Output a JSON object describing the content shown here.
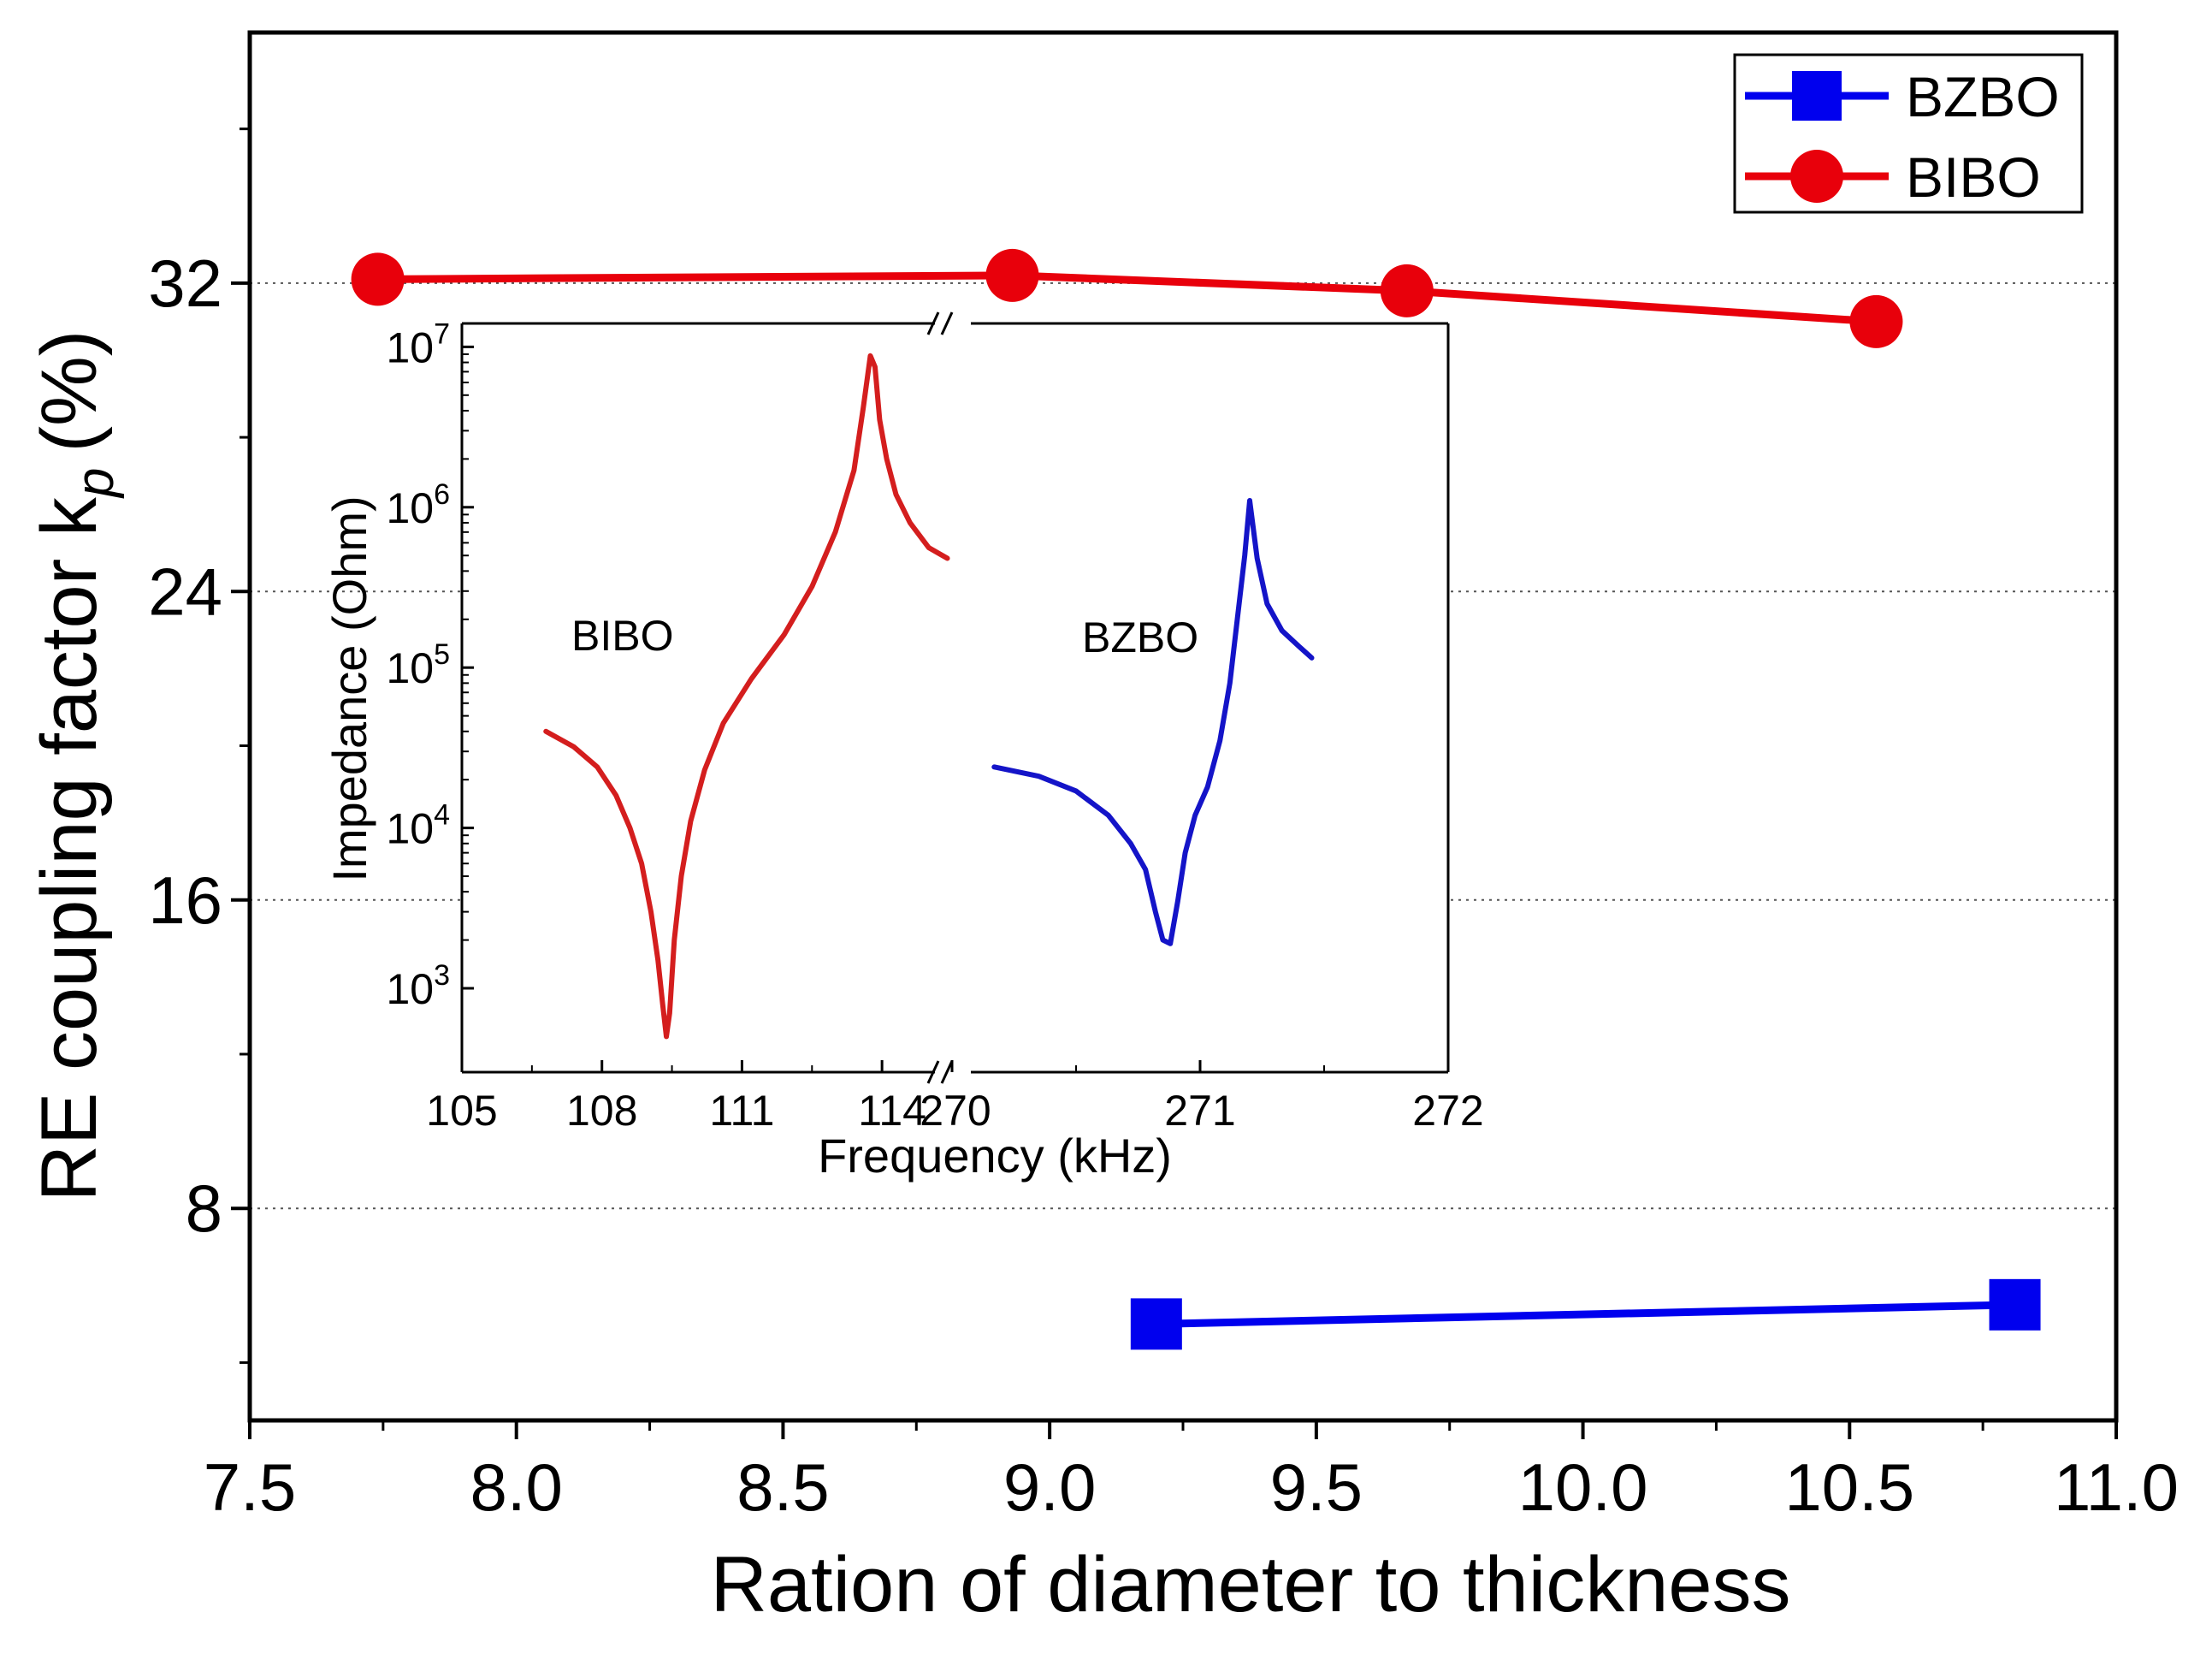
{
  "chart_data": [
    {
      "type": "line",
      "role": "main",
      "xlabel": "Ration of diameter to thickness",
      "ylabel": "RE coupling factor k",
      "ylabel_subscript": "p",
      "ylabel_suffix": "(%)",
      "xlim": [
        7.5,
        11.0
      ],
      "ylim": [
        2.5,
        38.5
      ],
      "xticks": [
        7.5,
        8.0,
        8.5,
        9.0,
        9.5,
        10.0,
        10.5,
        11.0
      ],
      "xtick_labels": [
        "7.5",
        "8.0",
        "8.5",
        "9.0",
        "9.5",
        "10.0",
        "10.5",
        "11.0"
      ],
      "yticks": [
        8,
        16,
        24,
        32
      ],
      "ytick_labels": [
        "8",
        "16",
        "24",
        "32"
      ],
      "grid": "horizontal-dotted",
      "legend_position": "top-right",
      "series": [
        {
          "name": "BZBO",
          "color": "#0000ee",
          "marker": "square",
          "x": [
            9.2,
            10.81
          ],
          "y": [
            5.0,
            5.5
          ]
        },
        {
          "name": "BIBO",
          "color": "#e8000b",
          "marker": "circle",
          "x": [
            7.74,
            8.93,
            9.67,
            10.55
          ],
          "y": [
            32.1,
            32.2,
            31.8,
            31.0
          ]
        }
      ]
    },
    {
      "type": "line",
      "role": "inset",
      "xlabel": "Frequency (kHz)",
      "ylabel": "Impedance (Ohm)",
      "yscale": "log",
      "ylim": [
        300,
        14000000
      ],
      "yticks": [
        1000,
        10000,
        100000,
        1000000,
        10000000
      ],
      "ytick_base": "10",
      "ytick_exponents": [
        "3",
        "4",
        "5",
        "6",
        "7"
      ],
      "x_axis_break": "//",
      "x_segments": [
        {
          "xlim": [
            105,
            115.5
          ],
          "ticks": [
            105,
            108,
            111,
            114
          ],
          "tick_labels": [
            "105",
            "108",
            "111",
            "114"
          ]
        },
        {
          "xlim": [
            270,
            272
          ],
          "ticks": [
            270,
            271,
            272
          ],
          "tick_labels": [
            "270",
            "271",
            "272"
          ]
        }
      ],
      "series": [
        {
          "name": "BIBO",
          "color": "#d41e1e",
          "segment": 0,
          "x": [
            106.8,
            107.4,
            107.9,
            108.3,
            108.6,
            108.85,
            109.05,
            109.2,
            109.3,
            109.38,
            109.45,
            109.55,
            109.7,
            109.9,
            110.2,
            110.6,
            111.2,
            111.9,
            112.5,
            113.0,
            113.4,
            113.6,
            113.75,
            113.85,
            113.95,
            114.1,
            114.3,
            114.6,
            115.0,
            115.4
          ],
          "y": [
            40000,
            32000,
            24000,
            16000,
            10000,
            6000,
            3000,
            1500,
            800,
            500,
            700,
            2000,
            5000,
            11000,
            23000,
            45000,
            85000,
            160000,
            320000,
            700000,
            1700000,
            4200000,
            8800000,
            7500000,
            3500000,
            2000000,
            1200000,
            800000,
            560000,
            480000
          ]
        },
        {
          "name": "BZBO",
          "color": "#1414c8",
          "segment": 1,
          "x": [
            270.17,
            270.35,
            270.5,
            270.63,
            270.72,
            270.78,
            270.82,
            270.85,
            270.88,
            270.91,
            270.94,
            270.98,
            271.03,
            271.08,
            271.12,
            271.15,
            271.18,
            271.2,
            271.23,
            271.27,
            271.33,
            271.4,
            271.45
          ],
          "y": [
            24000,
            21000,
            17000,
            12000,
            8000,
            5500,
            3000,
            2000,
            1900,
            3500,
            7000,
            12000,
            18000,
            35000,
            80000,
            200000,
            500000,
            1100000,
            480000,
            250000,
            170000,
            135000,
            115000
          ]
        }
      ],
      "annotations": [
        {
          "text": "BIBO",
          "color": "#000000"
        },
        {
          "text": "BZBO",
          "color": "#000000"
        }
      ]
    }
  ]
}
